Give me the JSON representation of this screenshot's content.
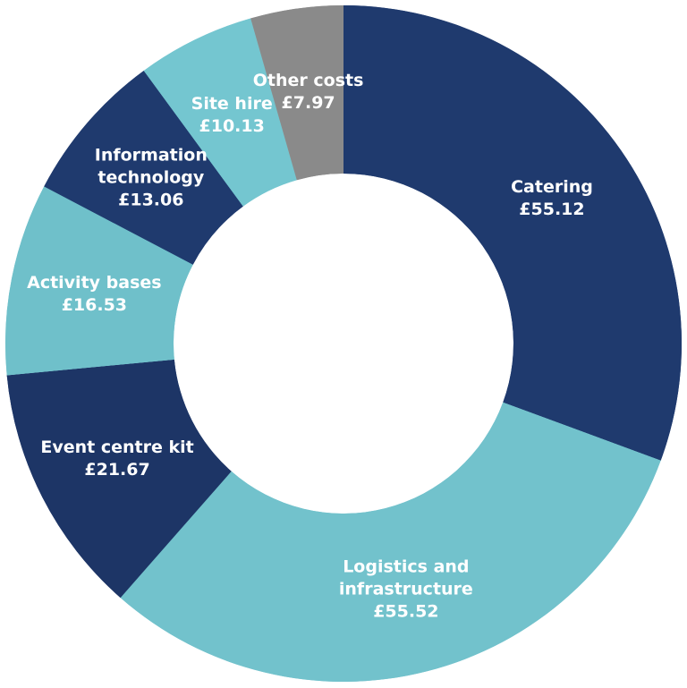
{
  "chart_data": {
    "type": "donut",
    "categories": [
      "Catering",
      "Logistics and infrastructure",
      "Event centre kit",
      "Activity bases",
      "Information technology",
      "Site hire",
      "Other costs"
    ],
    "values": [
      55.12,
      55.52,
      21.67,
      16.53,
      13.06,
      10.13,
      7.97
    ],
    "value_labels": [
      "£55.12",
      "£55.52",
      "£21.67",
      "£16.53",
      "£13.06",
      "£10.13",
      "£7.97"
    ],
    "colors": [
      "#1f3a6e",
      "#72c2cc",
      "#1d3566",
      "#6fc0ca",
      "#1f3a6e",
      "#74c6d0",
      "#8a8a8a"
    ]
  }
}
